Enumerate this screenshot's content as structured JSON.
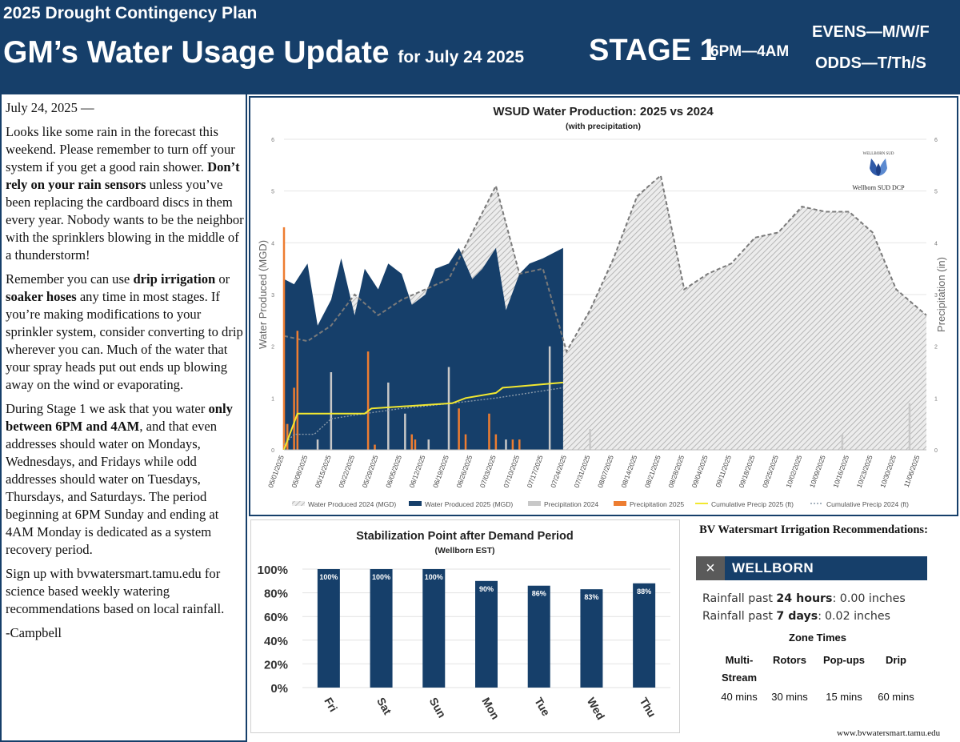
{
  "header": {
    "plan": "2025 Drought Contingency Plan",
    "title": "GM’s Water Usage Update",
    "date_label": "for July 24 2025",
    "stage": "STAGE 1",
    "hours": "6PM—4AM",
    "evens": "EVENS—M/W/F",
    "odds": "ODDS—T/Th/S"
  },
  "letter": {
    "date": "July 24, 2025 —",
    "p1_a": "Looks like some rain in the forecast this weekend.  Please remember to turn off your system if you get a good rain shower.  ",
    "p1_bold": "Don’t rely on your rain sensors",
    "p1_b": " unless you’ve been replacing the cardboard discs in them every year.  Nobody wants to be the neighbor with the sprinklers blowing in the middle of a thunderstorm!",
    "p2_a": "Remember you can use ",
    "p2_bold1": "drip irrigation",
    "p2_b": " or ",
    "p2_bold2": "soaker hoses",
    "p2_c": " any time in most stages.  If you’re making modifications to your sprinkler system, consider converting to drip wherever you can.  Much of the water that your spray heads put out ends up blowing away on the wind or evaporating.",
    "p3_a": "During Stage 1 we ask that you water ",
    "p3_bold": "only between 6PM and 4AM",
    "p3_b": ", and that even addresses should water on Mondays, Wednesdays, and Fridays while odd addresses should water on Tuesdays, Thursdays, and Saturdays.  The period beginning at 6PM Sunday and ending at 4AM Monday is dedicated as a system recovery period.",
    "p4": "Sign up with bvwatersmart.tamu.edu for science based weekly watering recommendations based on local rainfall.",
    "signature": "-Campbell"
  },
  "chart_data": [
    {
      "type": "area",
      "title": "WSUD Water Production: 2025 vs 2024",
      "subtitle": "(with precipitation)",
      "ylabel": "Water Produced (MGD)",
      "y2label": "Precipitation (in)",
      "ylim": [
        0,
        6
      ],
      "y2lim": [
        0,
        6
      ],
      "yticks": [
        "0",
        "1",
        "2",
        "3",
        "4",
        "5",
        "6"
      ],
      "x_start": "05/01/2025",
      "x_end": "11/08/2025",
      "xtick_labels": [
        "05/01/2025",
        "05/08/2025",
        "05/15/2025",
        "05/22/2025",
        "05/29/2025",
        "06/05/2025",
        "06/12/2025",
        "06/19/2025",
        "06/26/2025",
        "07/03/2025",
        "07/10/2025",
        "07/17/2025",
        "07/24/2025",
        "07/31/2025",
        "08/07/2025",
        "08/14/2025",
        "08/21/2025",
        "08/28/2025",
        "09/04/2025",
        "09/11/2025",
        "09/18/2025",
        "09/25/2025",
        "10/02/2025",
        "10/09/2025",
        "10/16/2025",
        "10/23/2025",
        "10/30/2025",
        "11/06/2025"
      ],
      "grid": true,
      "legend_position": "bottom",
      "logo_caption": "Wellborn SUD DCP",
      "logo_text": "WELLBORN SUD",
      "series": [
        {
          "name": "Water Produced 2024 (MGD)",
          "color": "#b8b8b8",
          "style": "hatched-area",
          "x": [
            "05/01/2025",
            "05/08/2025",
            "05/15/2025",
            "05/22/2025",
            "05/29/2025",
            "06/05/2025",
            "06/12/2025",
            "06/19/2025",
            "06/26/2025",
            "07/03/2025",
            "07/10/2025",
            "07/17/2025",
            "07/24/2025",
            "07/31/2025",
            "08/07/2025",
            "08/14/2025",
            "08/21/2025",
            "08/28/2025",
            "09/04/2025",
            "09/11/2025",
            "09/18/2025",
            "09/25/2025",
            "10/02/2025",
            "10/09/2025",
            "10/16/2025",
            "10/23/2025",
            "10/30/2025",
            "11/08/2025"
          ],
          "values": [
            2.2,
            2.1,
            2.4,
            3.0,
            2.6,
            2.9,
            3.1,
            3.3,
            4.2,
            5.1,
            3.4,
            3.5,
            1.9,
            2.7,
            3.7,
            4.9,
            5.3,
            3.1,
            3.4,
            3.6,
            4.1,
            4.2,
            4.7,
            4.6,
            4.6,
            4.2,
            3.1,
            2.6
          ]
        },
        {
          "name": "Water Produced 2025 (MGD)",
          "color": "#163f6a",
          "style": "area",
          "x": [
            "05/01/2025",
            "05/04/2025",
            "05/08/2025",
            "05/11/2025",
            "05/15/2025",
            "05/18/2025",
            "05/22/2025",
            "05/25/2025",
            "05/29/2025",
            "06/01/2025",
            "06/05/2025",
            "06/08/2025",
            "06/12/2025",
            "06/15/2025",
            "06/19/2025",
            "06/22/2025",
            "06/26/2025",
            "06/29/2025",
            "07/03/2025",
            "07/06/2025",
            "07/10/2025",
            "07/13/2025",
            "07/17/2025",
            "07/23/2025"
          ],
          "values": [
            3.3,
            3.2,
            3.6,
            2.4,
            2.9,
            3.7,
            2.6,
            3.5,
            3.1,
            3.6,
            3.4,
            2.8,
            3.0,
            3.5,
            3.6,
            3.9,
            3.3,
            3.5,
            3.9,
            2.7,
            3.4,
            3.6,
            3.7,
            3.9
          ]
        },
        {
          "name": "Precipitation 2024",
          "color": "#c8c8c8",
          "style": "bar",
          "x": [
            "05/01/2025",
            "05/11/2025",
            "05/15/2025",
            "06/01/2025",
            "06/06/2025",
            "06/13/2025",
            "06/19/2025",
            "07/06/2025",
            "07/19/2025",
            "07/31/2025",
            "10/14/2025",
            "11/03/2025"
          ],
          "values": [
            0.5,
            0.2,
            1.5,
            1.3,
            0.7,
            0.2,
            1.6,
            0.2,
            2.0,
            0.4,
            0.3,
            0.9
          ]
        },
        {
          "name": "Precipitation 2025",
          "color": "#ed7d31",
          "style": "bar",
          "x": [
            "05/01/2025",
            "05/02/2025",
            "05/04/2025",
            "05/05/2025",
            "05/26/2025",
            "05/28/2025",
            "06/08/2025",
            "06/09/2025",
            "06/22/2025",
            "06/24/2025",
            "07/01/2025",
            "07/03/2025",
            "07/08/2025",
            "07/10/2025"
          ],
          "values": [
            4.3,
            0.5,
            1.2,
            2.3,
            1.9,
            0.1,
            0.3,
            0.2,
            0.8,
            0.3,
            0.7,
            0.3,
            0.2,
            0.2
          ]
        },
        {
          "name": "Cumulative Precip 2025 (ft)",
          "color": "#f2e830",
          "style": "line",
          "x": [
            "05/01/2025",
            "05/05/2025",
            "05/08/2025",
            "05/25/2025",
            "05/27/2025",
            "06/20/2025",
            "06/24/2025",
            "07/03/2025",
            "07/05/2025",
            "07/23/2025"
          ],
          "values": [
            0.0,
            0.7,
            0.7,
            0.7,
            0.8,
            0.9,
            1.0,
            1.1,
            1.2,
            1.3
          ]
        },
        {
          "name": "Cumulative Precip 2024 (ft)",
          "color": "#8a9aaa",
          "style": "dotted-line",
          "x": [
            "05/01/2025",
            "05/04/2025",
            "05/10/2025",
            "05/15/2025",
            "05/25/2025",
            "06/05/2025",
            "06/20/2025",
            "07/03/2025",
            "07/23/2025"
          ],
          "values": [
            0.1,
            0.3,
            0.3,
            0.6,
            0.7,
            0.8,
            0.9,
            1.0,
            1.2
          ]
        }
      ]
    },
    {
      "type": "bar",
      "title": "Stabilization Point after Demand Period",
      "subtitle": "(Wellborn EST)",
      "categories": [
        "Fri",
        "Sat",
        "Sun",
        "Mon",
        "Tue",
        "Wed",
        "Thu"
      ],
      "values": [
        100,
        100,
        100,
        90,
        86,
        83,
        88
      ],
      "value_labels": [
        "100%",
        "100%",
        "100%",
        "90%",
        "86%",
        "83%",
        "88%"
      ],
      "ylim": [
        0,
        100
      ],
      "yticks": [
        "0%",
        "20%",
        "40%",
        "60%",
        "80%",
        "100%"
      ],
      "grid": true,
      "color": "#163f6a"
    }
  ],
  "recommendations": {
    "title": "BV Watersmart Irrigation Recommendations:",
    "close_symbol": "×",
    "location": "WELLBORN",
    "rain24_prefix": "Rainfall past ",
    "rain24_bold": "24 hours",
    "rain24_value": ": 0.00 inches",
    "rain7_prefix": "Rainfall past ",
    "rain7_bold": "7 days",
    "rain7_colon": ":",
    "rain7_value": "0.02 inches",
    "zone_title": "Zone Times",
    "zones": [
      {
        "name": "Multi-Stream",
        "time": "40 mins"
      },
      {
        "name": "Rotors",
        "time": "30 mins"
      },
      {
        "name": "Pop-ups",
        "time": "15 mins"
      },
      {
        "name": "Drip",
        "time": "60 mins"
      }
    ]
  },
  "footer": {
    "website": "www.bvwatersmart.tamu.edu"
  },
  "colors": {
    "navy": "#163f6a",
    "orange": "#ed7d31",
    "gray": "#b8b8b8",
    "yellow": "#f2e830"
  }
}
